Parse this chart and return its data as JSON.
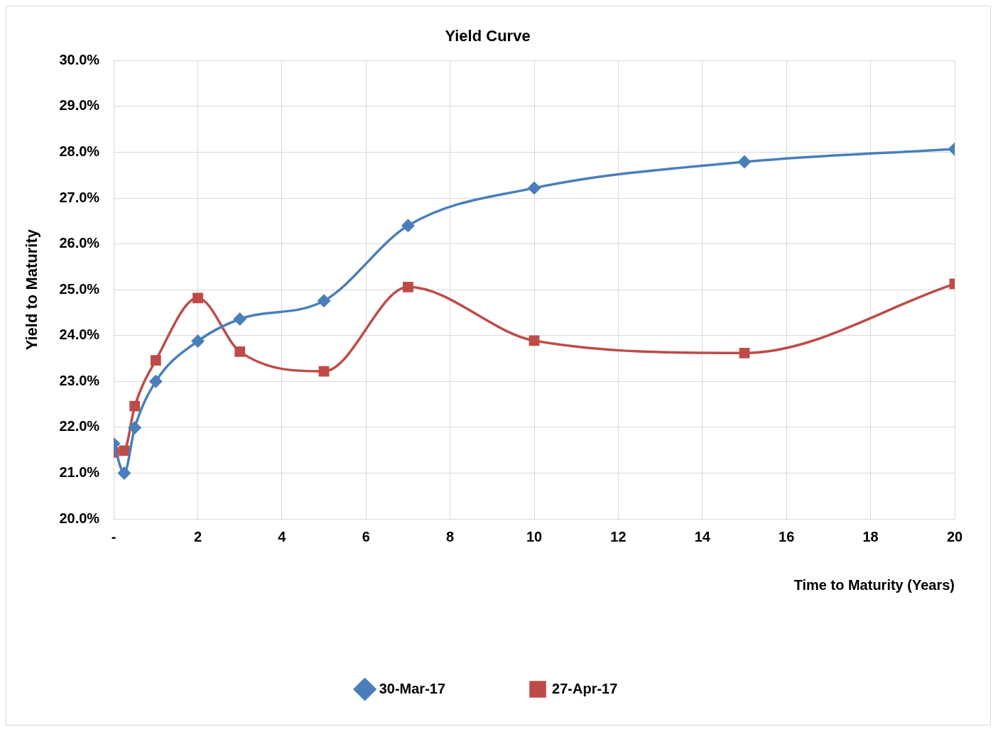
{
  "chart_data": {
    "type": "line",
    "title": "Yield Curve",
    "xlabel": "Time to Maturity (Years)",
    "ylabel": "Yield to Maturity",
    "xlim": [
      0,
      20
    ],
    "xticks": [
      {
        "value": 0,
        "label": "-"
      },
      2,
      4,
      6,
      8,
      10,
      12,
      14,
      16,
      18,
      20
    ],
    "ylim": [
      20,
      30
    ],
    "yticks": [
      {
        "value": 20,
        "label": "20.0%"
      },
      {
        "value": 21,
        "label": "21.0%"
      },
      {
        "value": 22,
        "label": "22.0%"
      },
      {
        "value": 23,
        "label": "23.0%"
      },
      {
        "value": 24,
        "label": "24.0%"
      },
      {
        "value": 25,
        "label": "25.0%"
      },
      {
        "value": 26,
        "label": "26.0%"
      },
      {
        "value": 27,
        "label": "27.0%"
      },
      {
        "value": 28,
        "label": "28.0%"
      },
      {
        "value": 29,
        "label": "29.0%"
      },
      {
        "value": 30,
        "label": "30.0%"
      }
    ],
    "x": [
      0,
      0.25,
      0.5,
      1,
      2,
      3,
      5,
      7,
      10,
      15,
      20
    ],
    "grid": true,
    "legend": "bottom",
    "line_style": "solid",
    "series": [
      {
        "name": "30-Mar-17",
        "color": "#4a7ebb",
        "marker": "diamond",
        "values": [
          21.64,
          21.0,
          21.99,
          23.0,
          23.88,
          24.36,
          24.76,
          26.4,
          27.22,
          27.79,
          28.07
        ]
      },
      {
        "name": "27-Apr-17",
        "color": "#be4b48",
        "marker": "square",
        "values": [
          21.45,
          21.49,
          22.46,
          23.46,
          24.82,
          23.65,
          23.22,
          25.06,
          23.89,
          23.62,
          25.13
        ]
      }
    ]
  }
}
